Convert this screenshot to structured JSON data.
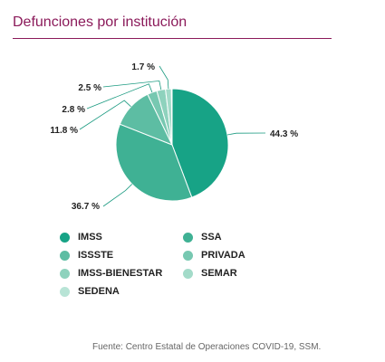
{
  "title": "Defunciones por institución",
  "source": "Fuente: Centro Estatal de Operaciones COVID-19, SSM.",
  "colors": {
    "title": "#8b1a5a",
    "leader": "#1a9a80"
  },
  "chart_data": {
    "type": "pie",
    "title": "Defunciones por institución",
    "slices": [
      {
        "label": "IMSS",
        "value": 44.3,
        "display": "44.3 %",
        "color": "#17a386"
      },
      {
        "label": "SSA",
        "value": 36.7,
        "display": "36.7 %",
        "color": "#3fb194"
      },
      {
        "label": "ISSSTE",
        "value": 11.8,
        "display": "11.8 %",
        "color": "#5dbda3"
      },
      {
        "label": "PRIVADA",
        "value": 2.8,
        "display": "2.8 %",
        "color": "#77c8b1"
      },
      {
        "label": "IMSS-BIENESTAR",
        "value": 2.5,
        "display": "2.5 %",
        "color": "#8ed2bd"
      },
      {
        "label": "SEMAR",
        "value": 1.7,
        "display": "1.7 %",
        "color": "#a3dbc9"
      },
      {
        "label": "SEDENA",
        "value": 0.2,
        "display": "",
        "color": "#b8e4d6"
      }
    ],
    "legend": [
      {
        "label": "IMSS",
        "color": "#17a386"
      },
      {
        "label": "SSA",
        "color": "#3fb194"
      },
      {
        "label": "ISSSTE",
        "color": "#5dbda3"
      },
      {
        "label": "PRIVADA",
        "color": "#77c8b1"
      },
      {
        "label": "IMSS-BIENESTAR",
        "color": "#8ed2bd"
      },
      {
        "label": "SEMAR",
        "color": "#a3dbc9"
      },
      {
        "label": "SEDENA",
        "color": "#b8e4d6"
      }
    ],
    "legend_placement": "bottom"
  }
}
